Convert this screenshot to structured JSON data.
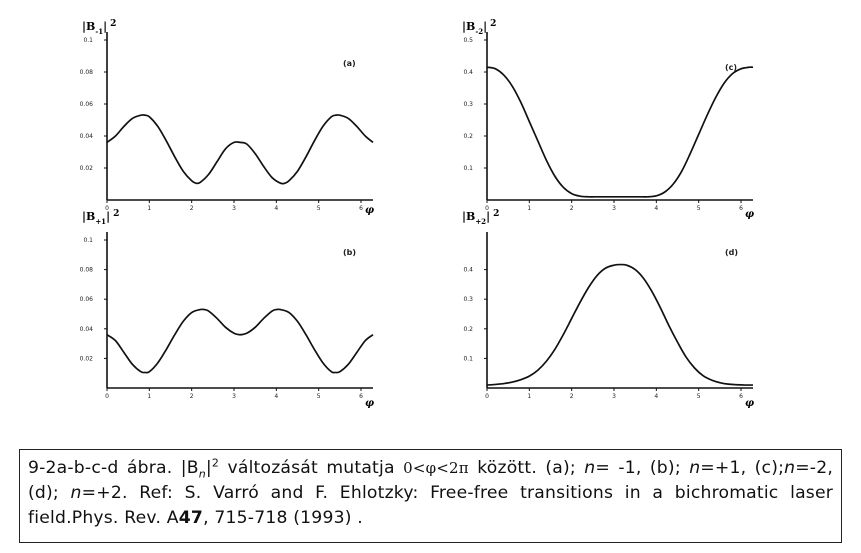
{
  "chart_data": [
    {
      "type": "line",
      "panel_label": "(a)",
      "y_axis_label": {
        "left": "|B",
        "sub": "-1",
        "right": "|",
        "sup": "2"
      },
      "x_axis_label": "φ",
      "xlim": [
        0,
        6.2832
      ],
      "ylim": [
        0,
        0.1
      ],
      "x_ticks": [
        0,
        1,
        2,
        3,
        4,
        5,
        6
      ],
      "x_tick_labels": [
        "0",
        "1",
        "2",
        "3",
        "4",
        "5",
        "6"
      ],
      "y_ticks": [
        0.02,
        0.04,
        0.06,
        0.08,
        0.1
      ],
      "y_tick_labels": [
        "0.02",
        "0.04",
        "0.06",
        "0.08",
        "0.1"
      ],
      "series": [
        {
          "x": [
            0,
            0.2,
            0.4,
            0.6,
            0.8,
            0.9,
            1.0,
            1.2,
            1.4,
            1.6,
            1.8,
            2.0,
            2.1,
            2.2,
            2.4,
            2.6,
            2.8,
            3.0,
            3.14,
            3.3,
            3.5,
            3.7,
            3.9,
            4.1,
            4.2,
            4.3,
            4.5,
            4.7,
            4.9,
            5.1,
            5.3,
            5.4,
            5.5,
            5.7,
            5.9,
            6.1,
            6.2832
          ],
          "y": [
            0.036,
            0.04,
            0.046,
            0.051,
            0.053,
            0.053,
            0.052,
            0.046,
            0.037,
            0.027,
            0.018,
            0.012,
            0.0105,
            0.011,
            0.016,
            0.024,
            0.032,
            0.036,
            0.036,
            0.035,
            0.029,
            0.021,
            0.014,
            0.0105,
            0.0105,
            0.012,
            0.018,
            0.027,
            0.037,
            0.046,
            0.052,
            0.053,
            0.053,
            0.051,
            0.046,
            0.04,
            0.036
          ]
        }
      ]
    },
    {
      "type": "line",
      "panel_label": "(b)",
      "y_axis_label": {
        "left": "|B",
        "sub": "+1",
        "right": "|",
        "sup": "2"
      },
      "x_axis_label": "φ",
      "xlim": [
        0,
        6.2832
      ],
      "ylim": [
        0,
        0.1
      ],
      "x_ticks": [
        0,
        1,
        2,
        3,
        4,
        5,
        6
      ],
      "x_tick_labels": [
        "0",
        "1",
        "2",
        "3",
        "4",
        "5",
        "6"
      ],
      "y_ticks": [
        0.02,
        0.04,
        0.06,
        0.08,
        0.1
      ],
      "y_tick_labels": [
        "0.02",
        "0.04",
        "0.06",
        "0.08",
        "0.1"
      ],
      "series": [
        {
          "x": [
            0,
            0.2,
            0.4,
            0.6,
            0.8,
            0.9,
            1.0,
            1.2,
            1.4,
            1.6,
            1.8,
            2.0,
            2.2,
            2.3,
            2.4,
            2.6,
            2.8,
            3.0,
            3.14,
            3.3,
            3.5,
            3.7,
            3.9,
            4.0,
            4.1,
            4.3,
            4.5,
            4.7,
            4.9,
            5.1,
            5.3,
            5.4,
            5.5,
            5.7,
            5.9,
            6.1,
            6.2832
          ],
          "y": [
            0.036,
            0.032,
            0.024,
            0.016,
            0.011,
            0.0105,
            0.011,
            0.017,
            0.026,
            0.036,
            0.045,
            0.051,
            0.053,
            0.053,
            0.052,
            0.047,
            0.041,
            0.037,
            0.036,
            0.037,
            0.041,
            0.047,
            0.052,
            0.053,
            0.053,
            0.051,
            0.045,
            0.036,
            0.026,
            0.017,
            0.011,
            0.0105,
            0.011,
            0.016,
            0.024,
            0.032,
            0.036
          ]
        }
      ]
    },
    {
      "type": "line",
      "panel_label": "(c)",
      "y_axis_label": {
        "left": "|B",
        "sub": "-2",
        "right": "|",
        "sup": "2"
      },
      "x_axis_label": "φ",
      "xlim": [
        0,
        6.2832
      ],
      "ylim": [
        0,
        0.5
      ],
      "x_ticks": [
        0,
        1,
        2,
        3,
        4,
        5,
        6
      ],
      "x_tick_labels": [
        "0",
        "1",
        "2",
        "3",
        "4",
        "5",
        "6"
      ],
      "y_ticks": [
        0.1,
        0.2,
        0.3,
        0.4,
        0.5
      ],
      "y_tick_labels": [
        "0.1",
        "0.2",
        "0.3",
        "0.4",
        "0.5"
      ],
      "series": [
        {
          "x": [
            0,
            0.2,
            0.4,
            0.6,
            0.8,
            1.0,
            1.2,
            1.4,
            1.6,
            1.8,
            2.0,
            2.2,
            2.4,
            2.6,
            2.8,
            3.0,
            3.2,
            3.4,
            3.6,
            3.8,
            4.0,
            4.2,
            4.4,
            4.6,
            4.8,
            5.0,
            5.2,
            5.4,
            5.6,
            5.8,
            6.0,
            6.2,
            6.2832
          ],
          "y": [
            0.415,
            0.41,
            0.39,
            0.355,
            0.305,
            0.245,
            0.185,
            0.125,
            0.075,
            0.04,
            0.02,
            0.012,
            0.01,
            0.01,
            0.01,
            0.01,
            0.01,
            0.01,
            0.01,
            0.01,
            0.013,
            0.025,
            0.05,
            0.09,
            0.145,
            0.205,
            0.265,
            0.32,
            0.365,
            0.395,
            0.41,
            0.415,
            0.415
          ]
        }
      ]
    },
    {
      "type": "line",
      "panel_label": "(d)",
      "y_axis_label": {
        "left": "|B",
        "sub": "+2",
        "right": "|",
        "sup": "2"
      },
      "x_axis_label": "φ",
      "xlim": [
        0,
        6.2832
      ],
      "ylim": [
        0,
        0.5
      ],
      "x_ticks": [
        0,
        1,
        2,
        3,
        4,
        5,
        6
      ],
      "x_tick_labels": [
        "0",
        "1",
        "2",
        "3",
        "4",
        "5",
        "6"
      ],
      "y_ticks": [
        0.1,
        0.2,
        0.3,
        0.4
      ],
      "y_tick_labels": [
        "0.1",
        "0.2",
        "0.3",
        "0.4"
      ],
      "series": [
        {
          "x": [
            0,
            0.2,
            0.4,
            0.6,
            0.8,
            1.0,
            1.2,
            1.4,
            1.6,
            1.8,
            2.0,
            2.2,
            2.4,
            2.6,
            2.8,
            3.0,
            3.14,
            3.3,
            3.5,
            3.7,
            3.9,
            4.1,
            4.3,
            4.5,
            4.7,
            4.9,
            5.1,
            5.3,
            5.5,
            5.7,
            5.9,
            6.1,
            6.2832
          ],
          "y": [
            0.01,
            0.012,
            0.015,
            0.02,
            0.028,
            0.04,
            0.06,
            0.09,
            0.13,
            0.18,
            0.235,
            0.29,
            0.34,
            0.38,
            0.405,
            0.415,
            0.417,
            0.415,
            0.4,
            0.37,
            0.325,
            0.27,
            0.21,
            0.155,
            0.105,
            0.068,
            0.042,
            0.027,
            0.018,
            0.013,
            0.011,
            0.01,
            0.01
          ]
        }
      ]
    }
  ],
  "caption": {
    "fig_id": "9-2a-b-c-d ábra. ",
    "b_symbol": "|B",
    "b_sub": "n",
    "b_close": "|",
    "b_sup": "2",
    "text1": " változását mutatja ",
    "range": "0<φ<2π",
    "text2": " között. (a); ",
    "n1": "n",
    "t3": "= -1, (b); ",
    "n2": "n",
    "t4": "=+1, (c);",
    "n3": "n",
    "t5": "=-2, (d); ",
    "n4": "n",
    "t6": "=+2. Ref: S. Varró and F. Ehlotzky: Free-free transitions in a bichromatic laser field.Phys. Rev. A",
    "volume": "47",
    "t7": ", 715-718 (1993) ."
  }
}
